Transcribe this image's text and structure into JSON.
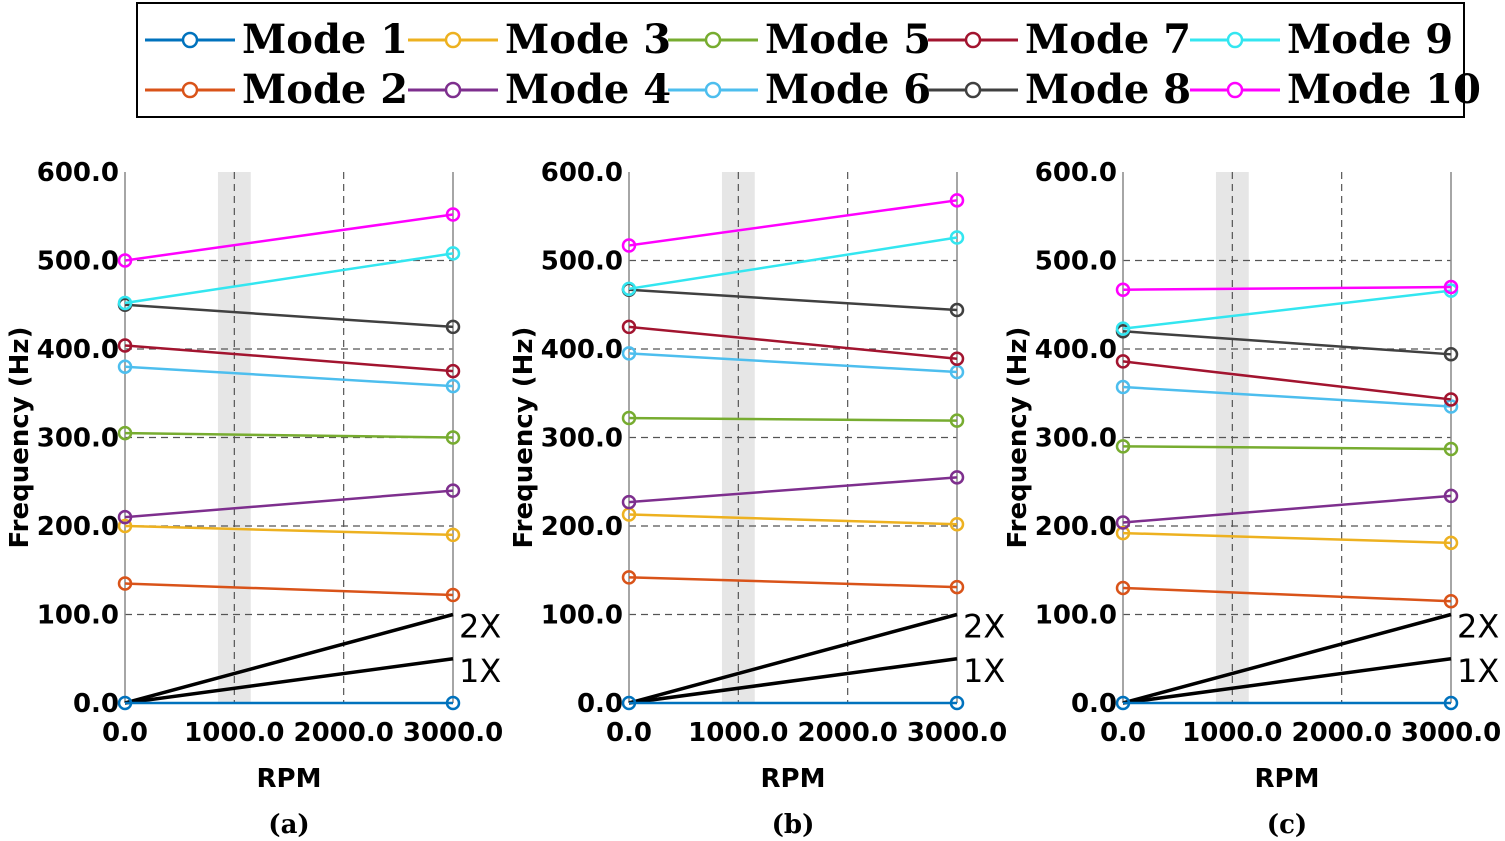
{
  "legend": {
    "entries": [
      {
        "label": "Mode 1",
        "color": "#0072BD"
      },
      {
        "label": "Mode 2",
        "color": "#D95319"
      },
      {
        "label": "Mode 3",
        "color": "#EDB120"
      },
      {
        "label": "Mode 4",
        "color": "#7E2F8E"
      },
      {
        "label": "Mode 5",
        "color": "#77AC30"
      },
      {
        "label": "Mode 6",
        "color": "#4DBEEE"
      },
      {
        "label": "Mode 7",
        "color": "#A2142F"
      },
      {
        "label": "Mode 8",
        "color": "#404040"
      },
      {
        "label": "Mode 9",
        "color": "#33E6F0"
      },
      {
        "label": "Mode 10",
        "color": "#FF00FF"
      }
    ]
  },
  "chart_data": [
    {
      "type": "line",
      "caption": "(a)",
      "xlabel": "RPM",
      "ylabel": "Frequency (Hz)",
      "xlim": [
        0,
        3000
      ],
      "ylim": [
        0,
        600
      ],
      "xticks": [
        0,
        1000,
        2000,
        3000
      ],
      "xtick_labels": [
        "0.0",
        "1000.0",
        "2000.0",
        "3000.0"
      ],
      "yticks": [
        0,
        100,
        200,
        300,
        400,
        500,
        600
      ],
      "ytick_labels": [
        "0.0",
        "100.0",
        "200.0",
        "300.0",
        "400.0",
        "500.0",
        "600.0"
      ],
      "grid": true,
      "shaded_band": [
        850,
        1150
      ],
      "x": [
        0,
        3000
      ],
      "series": [
        {
          "name": "Mode 1",
          "values": [
            0,
            0
          ]
        },
        {
          "name": "Mode 2",
          "values": [
            135,
            122
          ]
        },
        {
          "name": "Mode 3",
          "values": [
            200,
            190
          ]
        },
        {
          "name": "Mode 4",
          "values": [
            210,
            240
          ]
        },
        {
          "name": "Mode 5",
          "values": [
            305,
            300
          ]
        },
        {
          "name": "Mode 6",
          "values": [
            380,
            358
          ]
        },
        {
          "name": "Mode 7",
          "values": [
            404,
            375
          ]
        },
        {
          "name": "Mode 8",
          "values": [
            450,
            425
          ]
        },
        {
          "name": "Mode 9",
          "values": [
            452,
            508
          ]
        },
        {
          "name": "Mode 10",
          "values": [
            500,
            552
          ]
        }
      ],
      "excitation_lines": [
        {
          "label": "2X",
          "values": [
            0,
            100
          ]
        },
        {
          "label": "1X",
          "values": [
            0,
            50
          ]
        }
      ]
    },
    {
      "type": "line",
      "caption": "(b)",
      "xlabel": "RPM",
      "ylabel": "Frequency (Hz)",
      "xlim": [
        0,
        3000
      ],
      "ylim": [
        0,
        600
      ],
      "xticks": [
        0,
        1000,
        2000,
        3000
      ],
      "xtick_labels": [
        "0.0",
        "1000.0",
        "2000.0",
        "3000.0"
      ],
      "yticks": [
        0,
        100,
        200,
        300,
        400,
        500,
        600
      ],
      "ytick_labels": [
        "0.0",
        "100.0",
        "200.0",
        "300.0",
        "400.0",
        "500.0",
        "600.0"
      ],
      "grid": true,
      "shaded_band": [
        850,
        1150
      ],
      "x": [
        0,
        3000
      ],
      "series": [
        {
          "name": "Mode 1",
          "values": [
            0,
            0
          ]
        },
        {
          "name": "Mode 2",
          "values": [
            142,
            131
          ]
        },
        {
          "name": "Mode 3",
          "values": [
            213,
            202
          ]
        },
        {
          "name": "Mode 4",
          "values": [
            227,
            255
          ]
        },
        {
          "name": "Mode 5",
          "values": [
            322,
            319
          ]
        },
        {
          "name": "Mode 6",
          "values": [
            395,
            374
          ]
        },
        {
          "name": "Mode 7",
          "values": [
            425,
            389
          ]
        },
        {
          "name": "Mode 8",
          "values": [
            467,
            444
          ]
        },
        {
          "name": "Mode 9",
          "values": [
            468,
            526
          ]
        },
        {
          "name": "Mode 10",
          "values": [
            517,
            568
          ]
        }
      ],
      "excitation_lines": [
        {
          "label": "2X",
          "values": [
            0,
            100
          ]
        },
        {
          "label": "1X",
          "values": [
            0,
            50
          ]
        }
      ]
    },
    {
      "type": "line",
      "caption": "(c)",
      "xlabel": "RPM",
      "ylabel": "Frequency (Hz)",
      "xlim": [
        0,
        3000
      ],
      "ylim": [
        0,
        600
      ],
      "xticks": [
        0,
        1000,
        2000,
        3000
      ],
      "xtick_labels": [
        "0.0",
        "1000.0",
        "2000.0",
        "3000.0"
      ],
      "yticks": [
        0,
        100,
        200,
        300,
        400,
        500,
        600
      ],
      "ytick_labels": [
        "0.0",
        "100.0",
        "200.0",
        "300.0",
        "400.0",
        "500.0",
        "600.0"
      ],
      "grid": true,
      "shaded_band": [
        850,
        1150
      ],
      "x": [
        0,
        3000
      ],
      "series": [
        {
          "name": "Mode 1",
          "values": [
            0,
            0
          ]
        },
        {
          "name": "Mode 2",
          "values": [
            130,
            115
          ]
        },
        {
          "name": "Mode 3",
          "values": [
            192,
            181
          ]
        },
        {
          "name": "Mode 4",
          "values": [
            204,
            234
          ]
        },
        {
          "name": "Mode 5",
          "values": [
            290,
            287
          ]
        },
        {
          "name": "Mode 6",
          "values": [
            357,
            335
          ]
        },
        {
          "name": "Mode 7",
          "values": [
            386,
            343
          ]
        },
        {
          "name": "Mode 8",
          "values": [
            420,
            394
          ]
        },
        {
          "name": "Mode 9",
          "values": [
            423,
            466
          ]
        },
        {
          "name": "Mode 10",
          "values": [
            467,
            470
          ]
        }
      ],
      "excitation_lines": [
        {
          "label": "2X",
          "values": [
            0,
            100
          ]
        },
        {
          "label": "1X",
          "values": [
            0,
            50
          ]
        }
      ]
    }
  ]
}
